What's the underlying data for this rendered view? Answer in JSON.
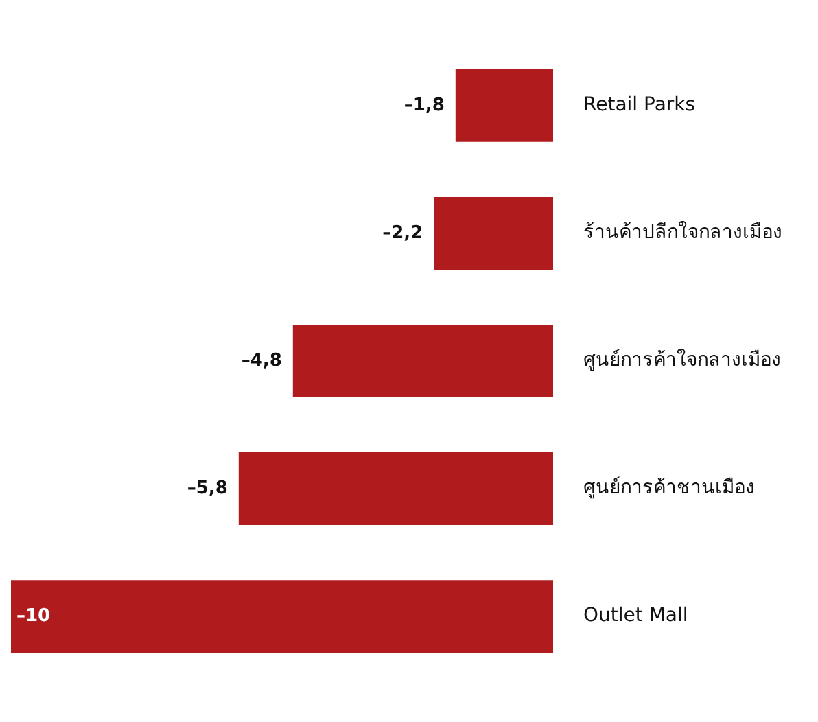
{
  "chart_data": {
    "type": "bar",
    "orientation": "horizontal",
    "categories": [
      "Retail Parks",
      "ร้านค้าปลีกใจกลางเมือง",
      "ศูนย์การค้าใจกลางเมือง",
      "ศูนย์การค้าชานเมือง",
      "Outlet Mall"
    ],
    "values": [
      -1.8,
      -2.2,
      -4.8,
      -5.8,
      -10
    ],
    "value_labels": [
      "–1,8",
      "–2,2",
      "–4,8",
      "–5,8",
      "–10"
    ],
    "color": "#b01c1e",
    "grid": false,
    "legend": false
  }
}
